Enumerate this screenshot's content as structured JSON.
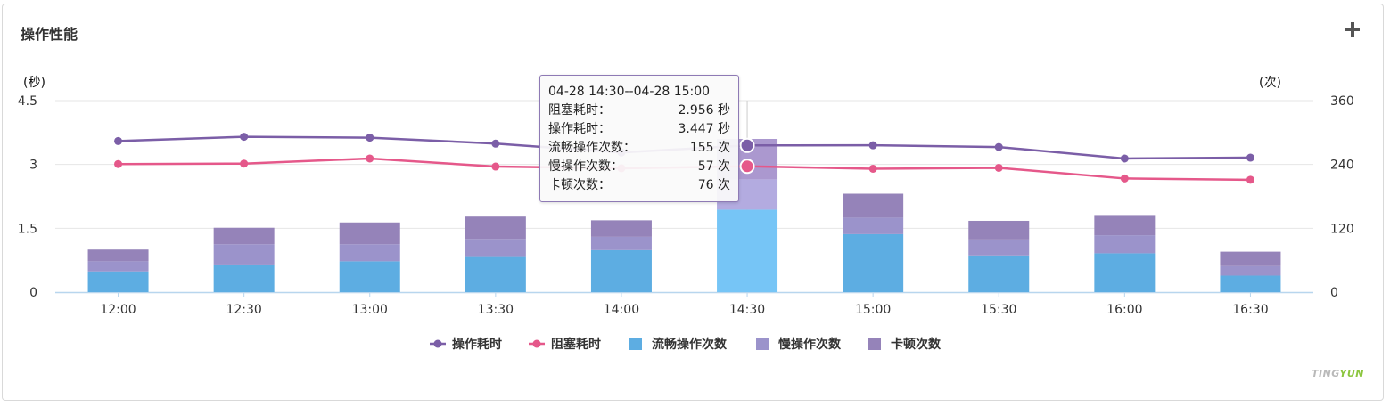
{
  "panel": {
    "title": "操作性能"
  },
  "watermark": {
    "part1": "TING",
    "part2": "YUN"
  },
  "tooltip": {
    "header": "04-28 14:30--04-28 15:00",
    "rows": [
      {
        "label": "阻塞耗时：",
        "value": "2.956 秒"
      },
      {
        "label": "操作耗时：",
        "value": "3.447 秒"
      },
      {
        "label": "流畅操作次数：",
        "value": "155 次"
      },
      {
        "label": "慢操作次数：",
        "value": "57 次"
      },
      {
        "label": "卡顿次数：",
        "value": "76 次"
      }
    ]
  },
  "chart_data": {
    "type": "bar",
    "categories": [
      "12:00",
      "12:30",
      "13:00",
      "13:30",
      "14:00",
      "14:30",
      "15:00",
      "15:30",
      "16:00",
      "16:30"
    ],
    "y_left": {
      "label": "(秒)",
      "ticks": [
        "4.5",
        "3",
        "1.5",
        "0"
      ],
      "range": [
        0,
        4.5
      ]
    },
    "y_right": {
      "label": "(次)",
      "ticks": [
        "360",
        "240",
        "120",
        "0"
      ],
      "range": [
        0,
        360
      ]
    },
    "stacked_series": [
      {
        "name": "流畅操作次数",
        "color": "#5dade2",
        "values": [
          39,
          52,
          58,
          66,
          79,
          155,
          109,
          69,
          73,
          31
        ]
      },
      {
        "name": "慢操作次数",
        "color": "#9b93cb",
        "values": [
          19,
          38,
          32,
          34,
          25,
          57,
          31,
          30,
          34,
          18
        ]
      },
      {
        "name": "卡顿次数",
        "color": "#9583b9",
        "values": [
          22,
          31,
          41,
          42,
          31,
          76,
          45,
          35,
          38,
          27
        ]
      }
    ],
    "line_series": [
      {
        "name": "操作耗时",
        "color": "#7b5ea7",
        "values": [
          3.55,
          3.65,
          3.63,
          3.49,
          3.28,
          3.447,
          3.45,
          3.41,
          3.14,
          3.16
        ]
      },
      {
        "name": "阻塞耗时",
        "color": "#e5588a",
        "values": [
          3.01,
          3.02,
          3.14,
          2.95,
          2.91,
          2.956,
          2.9,
          2.92,
          2.67,
          2.64
        ]
      }
    ],
    "highlight_index": 5,
    "highlight_color": "#76c5f6",
    "legend": {
      "placement": "bottom-center"
    },
    "grid": true
  }
}
